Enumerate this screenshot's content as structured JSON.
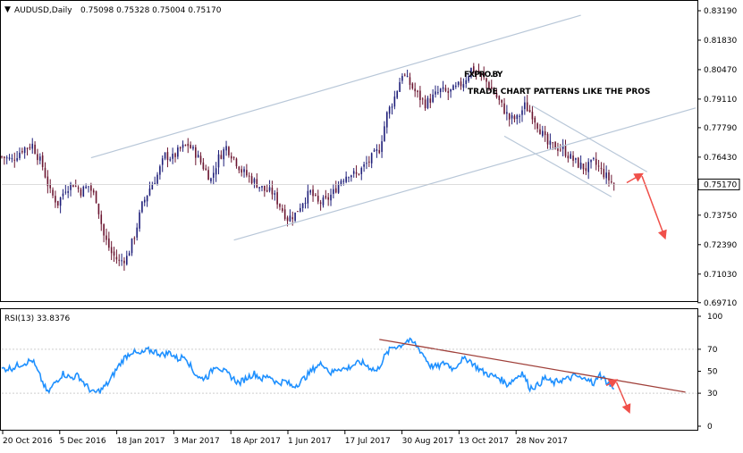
{
  "header": {
    "symbol_label": "AUDUSD,Daily",
    "ohlc_label": "0.75098 0.75328 0.75004 0.75170"
  },
  "logo": {
    "brand": "FXPRO.BY",
    "tagline": "TRADE CHART PATTERNS LIKE THE PROS"
  },
  "colors": {
    "background": "#ffffff",
    "frame": "#000000",
    "candle_up": "#1f1f7a",
    "candle_down": "#6b1530",
    "channel": "#b8c7d8",
    "arrow": "#f0504a",
    "rsi_line": "#1e90ff",
    "rsi_trend": "#a0403a",
    "price_marker_bg": "#ffffff"
  },
  "chart_data": [
    {
      "type": "candlestick",
      "title": "AUDUSD,Daily",
      "ohlc_readout": "0.75098 0.75328 0.75004 0.75170",
      "ylim": [
        0.697,
        0.8319
      ],
      "y_ticks": [
        "0.83190",
        "0.81830",
        "0.80470",
        "0.79110",
        "0.77790",
        "0.76430",
        "0.75170",
        "0.73750",
        "0.72390",
        "0.71030",
        "0.69710"
      ],
      "y_tick_values": [
        0.8319,
        0.8183,
        0.8047,
        0.7911,
        0.7779,
        0.7643,
        0.7517,
        0.7375,
        0.7239,
        0.7103,
        0.6971
      ],
      "current_price": 0.7517,
      "x_ticks": [
        "20 Oct 2016",
        "5 Dec 2016",
        "18 Jan 2017",
        "3 Mar 2017",
        "18 Apr 2017",
        "1 Jun 2017",
        "17 Jul 2017",
        "30 Aug 2017",
        "13 Oct 2017",
        "28 Nov 2017"
      ],
      "close_path": [
        [
          0,
          0.7645
        ],
        [
          4,
          0.763
        ],
        [
          8,
          0.768
        ],
        [
          12,
          0.77
        ],
        [
          16,
          0.76
        ],
        [
          19,
          0.748
        ],
        [
          22,
          0.743
        ],
        [
          25,
          0.75
        ],
        [
          28,
          0.752
        ],
        [
          31,
          0.7485
        ],
        [
          34,
          0.751
        ],
        [
          37,
          0.745
        ],
        [
          40,
          0.728
        ],
        [
          43,
          0.72
        ],
        [
          46,
          0.716
        ],
        [
          49,
          0.718
        ],
        [
          52,
          0.728
        ],
        [
          55,
          0.742
        ],
        [
          58,
          0.75
        ],
        [
          61,
          0.756
        ],
        [
          64,
          0.765
        ],
        [
          67,
          0.764
        ],
        [
          70,
          0.768
        ],
        [
          73,
          0.77
        ],
        [
          76,
          0.766
        ],
        [
          79,
          0.76
        ],
        [
          82,
          0.754
        ],
        [
          85,
          0.764
        ],
        [
          88,
          0.769
        ],
        [
          91,
          0.764
        ],
        [
          94,
          0.758
        ],
        [
          97,
          0.755
        ],
        [
          100,
          0.752
        ],
        [
          103,
          0.749
        ],
        [
          106,
          0.748
        ],
        [
          109,
          0.742
        ],
        [
          112,
          0.736
        ],
        [
          115,
          0.738
        ],
        [
          118,
          0.744
        ],
        [
          121,
          0.748
        ],
        [
          124,
          0.743
        ],
        [
          127,
          0.744
        ],
        [
          130,
          0.748
        ],
        [
          133,
          0.754
        ],
        [
          136,
          0.757
        ],
        [
          139,
          0.756
        ],
        [
          142,
          0.76
        ],
        [
          145,
          0.764
        ],
        [
          148,
          0.768
        ],
        [
          151,
          0.784
        ],
        [
          154,
          0.792
        ],
        [
          157,
          0.803
        ],
        [
          160,
          0.798
        ],
        [
          163,
          0.793
        ],
        [
          166,
          0.789
        ],
        [
          169,
          0.792
        ],
        [
          172,
          0.795
        ],
        [
          175,
          0.794
        ],
        [
          178,
          0.796
        ],
        [
          181,
          0.799
        ],
        [
          184,
          0.805
        ],
        [
          187,
          0.803
        ],
        [
          190,
          0.799
        ],
        [
          193,
          0.794
        ],
        [
          196,
          0.788
        ],
        [
          199,
          0.782
        ],
        [
          202,
          0.782
        ],
        [
          205,
          0.788
        ],
        [
          208,
          0.784
        ],
        [
          211,
          0.777
        ],
        [
          214,
          0.77
        ],
        [
          217,
          0.769
        ],
        [
          220,
          0.768
        ],
        [
          223,
          0.764
        ],
        [
          226,
          0.761
        ],
        [
          229,
          0.759
        ],
        [
          232,
          0.762
        ],
        [
          235,
          0.758
        ],
        [
          238,
          0.754
        ],
        [
          240,
          0.7517
        ]
      ],
      "channels": [
        {
          "name": "upper-1",
          "points": [
            [
              35,
              0.764
            ],
            [
              227,
              0.8298
            ]
          ]
        },
        {
          "name": "lower-1",
          "points": [
            [
              91,
              0.726
            ],
            [
              272,
              0.787
            ]
          ]
        },
        {
          "name": "down-upper",
          "points": [
            [
              208,
              0.788
            ],
            [
              253,
              0.7575
            ]
          ]
        },
        {
          "name": "down-lower",
          "points": [
            [
              197,
              0.774
            ],
            [
              239,
              0.746
            ]
          ]
        }
      ],
      "arrows": [
        {
          "from": [
            245,
            0.7525
          ],
          "to": [
            251,
            0.7565
          ]
        },
        {
          "from": [
            251,
            0.7555
          ],
          "to": [
            260,
            0.727
          ]
        }
      ]
    },
    {
      "type": "line",
      "title": "RSI(13) 33.8376",
      "ylim": [
        0,
        100
      ],
      "y_ticks": [
        100,
        70,
        50,
        30,
        0
      ],
      "y_tick_labels": [
        "100",
        "70",
        "50",
        "30",
        "0"
      ],
      "current_value": 33.8376,
      "x_ticks": [
        "20 Oct 2016",
        "5 Dec 2016",
        "18 Jan 2017",
        "3 Mar 2017",
        "18 Apr 2017",
        "1 Jun 2017",
        "17 Jul 2017",
        "30 Aug 2017",
        "13 Oct 2017",
        "28 Nov 2017"
      ],
      "values": [
        [
          0,
          52
        ],
        [
          4,
          53
        ],
        [
          8,
          57
        ],
        [
          12,
          60
        ],
        [
          15,
          45
        ],
        [
          18,
          30
        ],
        [
          21,
          40
        ],
        [
          24,
          48
        ],
        [
          27,
          44
        ],
        [
          30,
          46
        ],
        [
          33,
          37
        ],
        [
          36,
          30
        ],
        [
          39,
          33
        ],
        [
          42,
          40
        ],
        [
          45,
          52
        ],
        [
          48,
          62
        ],
        [
          51,
          68
        ],
        [
          54,
          65
        ],
        [
          57,
          69
        ],
        [
          60,
          68
        ],
        [
          63,
          65
        ],
        [
          66,
          67
        ],
        [
          69,
          61
        ],
        [
          72,
          64
        ],
        [
          75,
          50
        ],
        [
          78,
          43
        ],
        [
          81,
          46
        ],
        [
          84,
          56
        ],
        [
          87,
          50
        ],
        [
          90,
          45
        ],
        [
          93,
          39
        ],
        [
          96,
          44
        ],
        [
          99,
          48
        ],
        [
          102,
          43
        ],
        [
          105,
          46
        ],
        [
          108,
          39
        ],
        [
          111,
          41
        ],
        [
          114,
          36
        ],
        [
          117,
          40
        ],
        [
          120,
          47
        ],
        [
          123,
          54
        ],
        [
          126,
          57
        ],
        [
          129,
          48
        ],
        [
          132,
          53
        ],
        [
          135,
          52
        ],
        [
          138,
          56
        ],
        [
          141,
          58
        ],
        [
          144,
          54
        ],
        [
          147,
          50
        ],
        [
          150,
          63
        ],
        [
          153,
          72
        ],
        [
          156,
          73
        ],
        [
          159,
          78
        ],
        [
          162,
          75
        ],
        [
          165,
          66
        ],
        [
          168,
          55
        ],
        [
          171,
          54
        ],
        [
          174,
          58
        ],
        [
          177,
          52
        ],
        [
          180,
          60
        ],
        [
          183,
          61
        ],
        [
          186,
          54
        ],
        [
          189,
          49
        ],
        [
          192,
          46
        ],
        [
          195,
          44
        ],
        [
          198,
          38
        ],
        [
          201,
          43
        ],
        [
          204,
          49
        ],
        [
          207,
          35
        ],
        [
          210,
          37
        ],
        [
          213,
          44
        ],
        [
          216,
          39
        ],
        [
          219,
          42
        ],
        [
          222,
          43
        ],
        [
          225,
          46
        ],
        [
          228,
          42
        ],
        [
          230,
          45
        ],
        [
          232,
          36
        ],
        [
          234,
          48
        ],
        [
          237,
          41
        ],
        [
          240,
          33.8376
        ]
      ],
      "trendline": [
        [
          148,
          79
        ],
        [
          268,
          31
        ]
      ],
      "arrows": [
        {
          "from": [
            237,
            37
          ],
          "to": [
            241,
            42
          ]
        },
        {
          "from": [
            241,
            40
          ],
          "to": [
            246,
            13
          ]
        }
      ]
    }
  ]
}
